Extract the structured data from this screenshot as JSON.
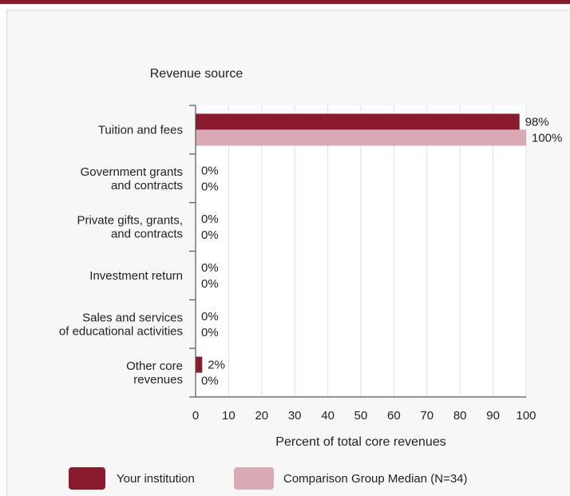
{
  "chart_data": {
    "type": "bar",
    "orientation": "horizontal",
    "y_axis_title": "Revenue source",
    "xlabel": "Percent of total core revenues",
    "xlim": [
      0,
      100
    ],
    "xticks": [
      "0",
      "10",
      "20",
      "30",
      "40",
      "50",
      "60",
      "70",
      "80",
      "90",
      "100"
    ],
    "grid": true,
    "legend_position": "bottom",
    "categories": [
      [
        "Tuition and fees"
      ],
      [
        "Government grants",
        "and contracts"
      ],
      [
        "Private gifts, grants,",
        "and contracts"
      ],
      [
        "Investment return"
      ],
      [
        "Sales and services",
        "of educational activities"
      ],
      [
        "Other core",
        "revenues"
      ]
    ],
    "series": [
      {
        "name": "Your institution",
        "color": "#8b1a2e",
        "values": [
          98,
          0,
          0,
          0,
          0,
          2
        ],
        "labels": [
          "98%",
          "0%",
          "0%",
          "0%",
          "0%",
          "2%"
        ]
      },
      {
        "name": "Comparison Group Median (N=34)",
        "color": "#d9a9b4",
        "values": [
          100,
          0,
          0,
          0,
          0,
          0
        ],
        "labels": [
          "100%",
          "0%",
          "0%",
          "0%",
          "0%",
          "0%"
        ]
      }
    ]
  }
}
